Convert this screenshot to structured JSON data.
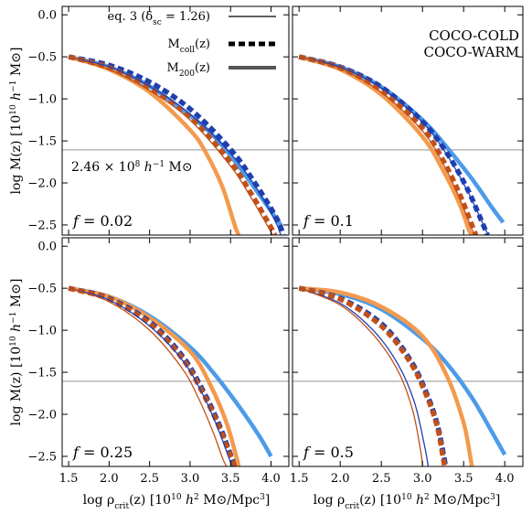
{
  "legend": {
    "eq3": "eq. 3 (δ",
    "eq3_sub": "sc",
    "eq3_tail": " = 1.26)",
    "mcoll": "M",
    "mcoll_sub": "coll",
    "mcoll_tail": "(z)",
    "m200": "M",
    "m200_sub": "200",
    "m200_tail": "(z)",
    "cold": "COCO-COLD",
    "warm": "COCO-WARM"
  },
  "annotation": {
    "mass_prefix": "2.46 × 10",
    "mass_exp": "8",
    "mass_unit": " h",
    "mass_hexp": "−1",
    "mass_sun": " M⊙"
  },
  "axes": {
    "ylabel": "log M(z) [10",
    "ylabel_exp": "10",
    "ylabel_h": " h",
    "ylabel_hexp": "−1",
    "ylabel_tail": " M⊙]",
    "xlabel_pre": "log ρ",
    "xlabel_sub": "crit",
    "xlabel_mid": "(z) [10",
    "xlabel_exp": "10",
    "xlabel_h": " h",
    "xlabel_hexp": "2",
    "xlabel_tail": " M⊙/Mpc",
    "xlabel_cube": "3",
    "xlabel_close": "]",
    "xticks": [
      "1.5",
      "2.0",
      "2.5",
      "3.0",
      "3.5",
      "4.0"
    ],
    "yticks": [
      "0.0",
      "−0.5",
      "−1.0",
      "−1.5",
      "−2.0",
      "−2.5"
    ]
  },
  "colors": {
    "cold_dark": "#1f3fb0",
    "cold_light": "#4d9be8",
    "warm_dark": "#c0501a",
    "warm_light": "#f39a4e",
    "hline": "#aaaaaa",
    "legend_cold": "#1a3f9a",
    "legend_warm": "#c0501a"
  },
  "chart_data": {
    "type": "line",
    "xlim": [
      1.42,
      4.22
    ],
    "ylim": [
      -2.62,
      0.1
    ],
    "hline": -1.607,
    "xlog": true,
    "grid": false,
    "panels": [
      {
        "label_pre": "f",
        "label_val": " = 0.02",
        "series": [
          {
            "name": "eq.3 COCO-COLD",
            "kind": "eq3",
            "color": "cold_dark",
            "x": [
              1.5,
              2.0,
              2.5,
              3.0,
              3.5,
              3.8,
              4.05,
              4.12
            ],
            "y": [
              -0.5,
              -0.62,
              -0.85,
              -1.18,
              -1.65,
              -2.03,
              -2.45,
              -2.62
            ]
          },
          {
            "name": "Mcoll COCO-COLD",
            "kind": "coll",
            "color": "cold_dark",
            "x": [
              1.5,
              2.0,
              2.5,
              3.0,
              3.5,
              3.8,
              4.07,
              4.15
            ],
            "y": [
              -0.5,
              -0.6,
              -0.8,
              -1.12,
              -1.6,
              -2.0,
              -2.42,
              -2.62
            ]
          },
          {
            "name": "M200 COCO-COLD",
            "kind": "m200",
            "color": "cold_light",
            "x": [
              1.5,
              2.0,
              2.5,
              3.0,
              3.3,
              3.6,
              3.9,
              4.12
            ],
            "y": [
              -0.5,
              -0.62,
              -0.85,
              -1.2,
              -1.45,
              -1.8,
              -2.2,
              -2.5
            ]
          },
          {
            "name": "eq.3 COCO-WARM",
            "kind": "eq3",
            "color": "warm_dark",
            "x": [
              1.5,
              2.0,
              2.5,
              3.0,
              3.5,
              3.75,
              3.95,
              4.02
            ],
            "y": [
              -0.5,
              -0.65,
              -0.9,
              -1.25,
              -1.8,
              -2.17,
              -2.5,
              -2.62
            ]
          },
          {
            "name": "Mcoll COCO-WARM",
            "kind": "coll",
            "color": "warm_dark",
            "x": [
              1.5,
              2.0,
              2.5,
              3.0,
              3.5,
              3.75,
              3.97,
              4.05
            ],
            "y": [
              -0.5,
              -0.63,
              -0.87,
              -1.22,
              -1.75,
              -2.12,
              -2.48,
              -2.62
            ]
          },
          {
            "name": "M200 COCO-WARM",
            "kind": "m200",
            "color": "warm_light",
            "x": [
              1.5,
              2.0,
              2.5,
              3.0,
              3.2,
              3.4,
              3.55,
              3.6
            ],
            "y": [
              -0.5,
              -0.65,
              -0.92,
              -1.37,
              -1.65,
              -2.05,
              -2.5,
              -2.62
            ]
          }
        ]
      },
      {
        "label_pre": "f",
        "label_val": " = 0.1",
        "series": [
          {
            "name": "eq.3 COCO-COLD",
            "kind": "eq3",
            "color": "cold_dark",
            "x": [
              1.5,
              2.0,
              2.5,
              3.0,
              3.3,
              3.55,
              3.75,
              3.8
            ],
            "y": [
              -0.5,
              -0.62,
              -0.87,
              -1.28,
              -1.67,
              -2.1,
              -2.52,
              -2.62
            ]
          },
          {
            "name": "Mcoll COCO-COLD",
            "kind": "coll",
            "color": "cold_dark",
            "x": [
              1.5,
              2.0,
              2.5,
              3.0,
              3.3,
              3.55,
              3.73,
              3.79
            ],
            "y": [
              -0.5,
              -0.62,
              -0.86,
              -1.27,
              -1.65,
              -2.08,
              -2.48,
              -2.62
            ]
          },
          {
            "name": "M200 COCO-COLD",
            "kind": "m200",
            "color": "cold_light",
            "x": [
              1.5,
              2.0,
              2.5,
              3.0,
              3.3,
              3.6,
              3.85,
              3.98
            ],
            "y": [
              -0.5,
              -0.62,
              -0.86,
              -1.25,
              -1.58,
              -1.95,
              -2.3,
              -2.47
            ]
          },
          {
            "name": "eq.3 COCO-WARM",
            "kind": "eq3",
            "color": "warm_dark",
            "x": [
              1.5,
              2.0,
              2.5,
              3.0,
              3.25,
              3.45,
              3.6,
              3.64
            ],
            "y": [
              -0.5,
              -0.64,
              -0.92,
              -1.38,
              -1.77,
              -2.18,
              -2.55,
              -2.62
            ]
          },
          {
            "name": "Mcoll COCO-WARM",
            "kind": "coll",
            "color": "warm_dark",
            "x": [
              1.5,
              2.0,
              2.5,
              3.0,
              3.25,
              3.45,
              3.6,
              3.65
            ],
            "y": [
              -0.5,
              -0.63,
              -0.9,
              -1.35,
              -1.73,
              -2.13,
              -2.5,
              -2.62
            ]
          },
          {
            "name": "M200 COCO-WARM",
            "kind": "m200",
            "color": "warm_light",
            "x": [
              1.5,
              2.0,
              2.5,
              3.0,
              3.25,
              3.45,
              3.56,
              3.6
            ],
            "y": [
              -0.5,
              -0.65,
              -0.95,
              -1.45,
              -1.85,
              -2.25,
              -2.55,
              -2.62
            ]
          }
        ]
      },
      {
        "label_pre": "f",
        "label_val": " = 0.25",
        "series": [
          {
            "name": "eq.3 COCO-COLD",
            "kind": "eq3",
            "color": "cold_dark",
            "x": [
              1.5,
              2.0,
              2.5,
              2.9,
              3.15,
              3.35,
              3.48,
              3.52
            ],
            "y": [
              -0.5,
              -0.64,
              -0.95,
              -1.35,
              -1.75,
              -2.18,
              -2.52,
              -2.62
            ]
          },
          {
            "name": "Mcoll COCO-COLD",
            "kind": "coll",
            "color": "cold_dark",
            "x": [
              1.5,
              2.0,
              2.5,
              2.9,
              3.15,
              3.35,
              3.5,
              3.55
            ],
            "y": [
              -0.5,
              -0.62,
              -0.9,
              -1.3,
              -1.7,
              -2.1,
              -2.48,
              -2.62
            ]
          },
          {
            "name": "M200 COCO-COLD",
            "kind": "m200",
            "color": "cold_light",
            "x": [
              1.5,
              2.0,
              2.5,
              3.0,
              3.3,
              3.6,
              3.85,
              4.0
            ],
            "y": [
              -0.5,
              -0.6,
              -0.83,
              -1.2,
              -1.52,
              -1.9,
              -2.25,
              -2.5
            ]
          },
          {
            "name": "eq.3 COCO-WARM",
            "kind": "eq3",
            "color": "warm_dark",
            "x": [
              1.5,
              2.0,
              2.5,
              2.9,
              3.1,
              3.28,
              3.4,
              3.45
            ],
            "y": [
              -0.5,
              -0.66,
              -1.0,
              -1.45,
              -1.8,
              -2.2,
              -2.52,
              -2.62
            ]
          },
          {
            "name": "Mcoll COCO-WARM",
            "kind": "coll",
            "color": "warm_dark",
            "x": [
              1.5,
              2.0,
              2.5,
              2.9,
              3.15,
              3.35,
              3.5,
              3.55
            ],
            "y": [
              -0.5,
              -0.63,
              -0.92,
              -1.33,
              -1.73,
              -2.13,
              -2.5,
              -2.62
            ]
          },
          {
            "name": "M200 COCO-WARM",
            "kind": "m200",
            "color": "warm_light",
            "x": [
              1.5,
              2.0,
              2.5,
              3.0,
              3.25,
              3.45,
              3.57,
              3.6
            ],
            "y": [
              -0.5,
              -0.6,
              -0.85,
              -1.25,
              -1.65,
              -2.1,
              -2.5,
              -2.62
            ]
          }
        ]
      },
      {
        "label_pre": "f",
        "label_val": " = 0.5",
        "series": [
          {
            "name": "eq.3 COCO-COLD",
            "kind": "eq3",
            "color": "cold_dark",
            "x": [
              1.5,
              2.0,
              2.4,
              2.7,
              2.9,
              3.02,
              3.07
            ],
            "y": [
              -0.5,
              -0.68,
              -1.0,
              -1.4,
              -1.85,
              -2.35,
              -2.62
            ]
          },
          {
            "name": "Mcoll COCO-COLD",
            "kind": "coll",
            "color": "cold_dark",
            "x": [
              1.5,
              2.0,
              2.5,
              2.85,
              3.05,
              3.18,
              3.26,
              3.28
            ],
            "y": [
              -0.5,
              -0.62,
              -0.92,
              -1.35,
              -1.75,
              -2.12,
              -2.5,
              -2.62
            ]
          },
          {
            "name": "M200 COCO-COLD",
            "kind": "m200",
            "color": "cold_light",
            "x": [
              1.5,
              2.0,
              2.5,
              3.0,
              3.3,
              3.6,
              3.85,
              4.0
            ],
            "y": [
              -0.5,
              -0.57,
              -0.75,
              -1.1,
              -1.4,
              -1.8,
              -2.22,
              -2.48
            ]
          },
          {
            "name": "eq.3 COCO-WARM",
            "kind": "eq3",
            "color": "warm_dark",
            "x": [
              1.5,
              2.0,
              2.4,
              2.7,
              2.88,
              2.98,
              3.0
            ],
            "y": [
              -0.5,
              -0.7,
              -1.05,
              -1.48,
              -1.95,
              -2.45,
              -2.62
            ]
          },
          {
            "name": "Mcoll COCO-WARM",
            "kind": "coll",
            "color": "warm_dark",
            "x": [
              1.5,
              2.0,
              2.5,
              2.85,
              3.05,
              3.18,
              3.25,
              3.27
            ],
            "y": [
              -0.5,
              -0.63,
              -0.95,
              -1.38,
              -1.78,
              -2.15,
              -2.52,
              -2.62
            ]
          },
          {
            "name": "M200 COCO-WARM",
            "kind": "m200",
            "color": "warm_light",
            "x": [
              1.5,
              2.0,
              2.5,
              3.0,
              3.3,
              3.5,
              3.58,
              3.6
            ],
            "y": [
              -0.5,
              -0.55,
              -0.72,
              -1.07,
              -1.55,
              -2.1,
              -2.5,
              -2.62
            ]
          }
        ]
      }
    ]
  }
}
